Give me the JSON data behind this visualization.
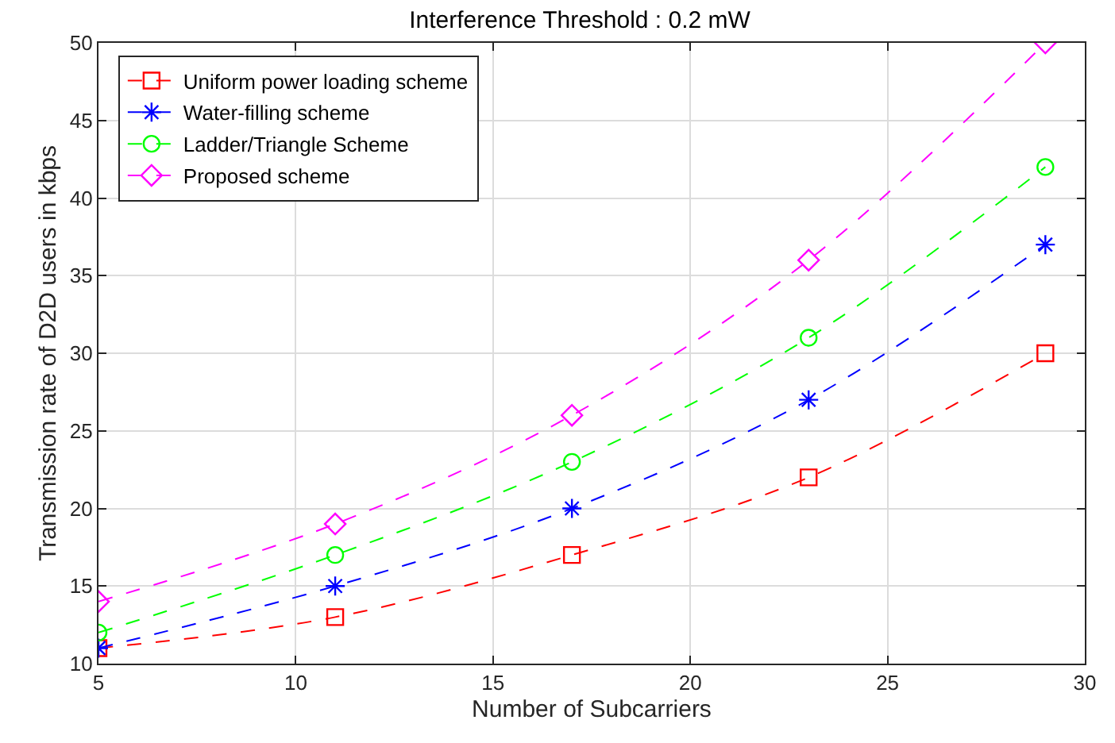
{
  "chart_data": {
    "type": "line",
    "title": "Interference Threshold : 0.2 mW",
    "xlabel": "Number of Subcarriers",
    "ylabel": "Transmission rate of D2D users in kbps",
    "x": [
      5,
      11,
      17,
      23,
      29
    ],
    "series": [
      {
        "name": "Uniform power loading scheme",
        "color": "#ff0000",
        "marker": "square",
        "values": [
          11,
          13,
          17,
          22,
          30
        ]
      },
      {
        "name": "Water-filling scheme",
        "color": "#0000ff",
        "marker": "cross",
        "values": [
          11,
          15,
          20,
          27,
          37
        ]
      },
      {
        "name": "Ladder/Triangle Scheme",
        "color": "#00ff00",
        "marker": "circle",
        "values": [
          12,
          17,
          23,
          31,
          42
        ]
      },
      {
        "name": "Proposed scheme",
        "color": "#ff00ff",
        "marker": "diamond",
        "values": [
          14,
          19,
          26,
          36,
          50
        ]
      }
    ],
    "xlim": [
      5,
      30
    ],
    "xticks": [
      5,
      10,
      15,
      20,
      25,
      30
    ],
    "ylim": [
      10,
      50
    ],
    "yticks": [
      10,
      15,
      20,
      25,
      30,
      35,
      40,
      45,
      50
    ],
    "grid": true,
    "legend": "top left",
    "line_style": "dashed"
  }
}
